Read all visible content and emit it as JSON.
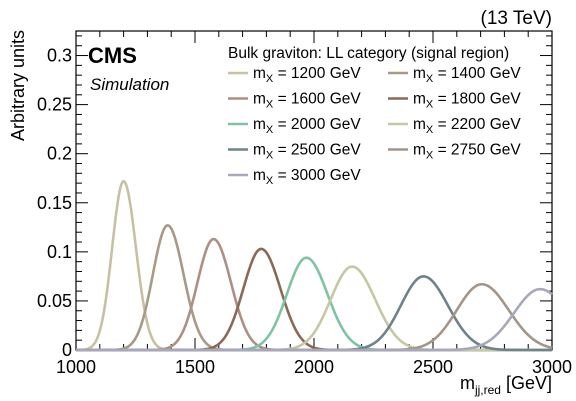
{
  "chart_data": {
    "type": "line",
    "energy_label": "(13 TeV)",
    "experiment": "CMS",
    "status": "Simulation",
    "legend_title": "Bulk graviton:  LL category (signal region)",
    "xlabel_main": "m",
    "xlabel_sub": "jj,red",
    "xlabel_unit": " [GeV]",
    "ylabel": "Arbitrary units",
    "xlim": [
      1000,
      3000
    ],
    "ylim": [
      0,
      0.325
    ],
    "x_ticks": [
      1000,
      1500,
      2000,
      2500,
      3000
    ],
    "y_ticks": [
      0,
      0.05,
      0.1,
      0.15,
      0.2,
      0.25,
      0.3
    ],
    "series_label_prefix": "X",
    "series_label_unit": "GeV",
    "series": [
      {
        "mass": 1200,
        "label": "m_X = 1200 GeV",
        "peak_x": 1200,
        "peak_y": 0.172,
        "sigma": 48,
        "color": "#c7c1a4"
      },
      {
        "mass": 1400,
        "label": "m_X = 1400 GeV",
        "peak_x": 1385,
        "peak_y": 0.127,
        "sigma": 62,
        "color": "#a89a85"
      },
      {
        "mass": 1600,
        "label": "m_X = 1600 GeV",
        "peak_x": 1578,
        "peak_y": 0.113,
        "sigma": 68,
        "color": "#ae8f84"
      },
      {
        "mass": 1800,
        "label": "m_X = 1800 GeV",
        "peak_x": 1778,
        "peak_y": 0.103,
        "sigma": 75,
        "color": "#8a6a56"
      },
      {
        "mass": 2000,
        "label": "m_X = 2000 GeV",
        "peak_x": 1968,
        "peak_y": 0.094,
        "sigma": 82,
        "color": "#7fc4a2"
      },
      {
        "mass": 2200,
        "label": "m_X = 2200 GeV",
        "peak_x": 2160,
        "peak_y": 0.085,
        "sigma": 90,
        "color": "#c6c8a4"
      },
      {
        "mass": 2500,
        "label": "m_X = 2500 GeV",
        "peak_x": 2460,
        "peak_y": 0.075,
        "sigma": 95,
        "color": "#6e8289"
      },
      {
        "mass": 2750,
        "label": "m_X = 2750 GeV",
        "peak_x": 2705,
        "peak_y": 0.067,
        "sigma": 105,
        "color": "#a4958a"
      },
      {
        "mass": 3000,
        "label": "m_X = 3000 GeV",
        "peak_x": 2950,
        "peak_y": 0.062,
        "sigma": 110,
        "color": "#a9a7bd"
      }
    ]
  }
}
